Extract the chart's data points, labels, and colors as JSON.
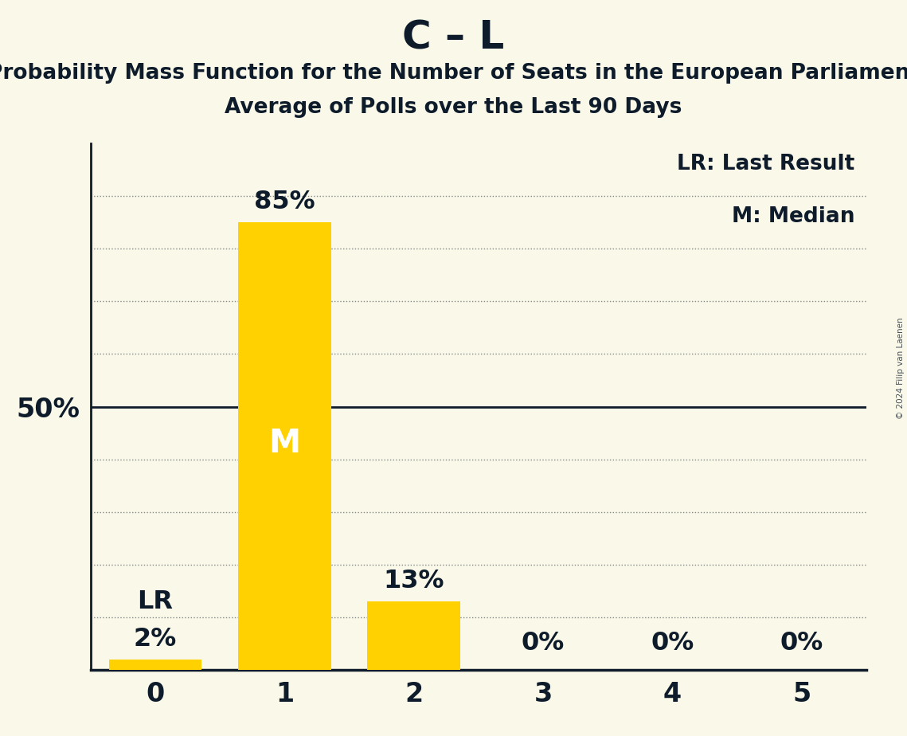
{
  "title": "C – L",
  "subtitle1": "Probability Mass Function for the Number of Seats in the European Parliament",
  "subtitle2": "Average of Polls over the Last 90 Days",
  "background_color": "#FAF8E8",
  "bar_color": "#FFD100",
  "text_color": "#0D1B2A",
  "categories": [
    0,
    1,
    2,
    3,
    4,
    5
  ],
  "values": [
    2,
    85,
    13,
    0,
    0,
    0
  ],
  "ylim": [
    0,
    100
  ],
  "ylabel_50": "50%",
  "legend_lr": "LR: Last Result",
  "legend_m": "M: Median",
  "lr_bar_idx": 0,
  "median_bar_idx": 1,
  "copyright": "© 2024 Filip van Laenen",
  "title_fontsize": 36,
  "subtitle_fontsize": 19,
  "tick_fontsize": 24,
  "value_fontsize": 23,
  "ylabel_fontsize": 24,
  "legend_fontsize": 19,
  "grid_levels": [
    10,
    20,
    30,
    40,
    50,
    60,
    70,
    80,
    90
  ]
}
